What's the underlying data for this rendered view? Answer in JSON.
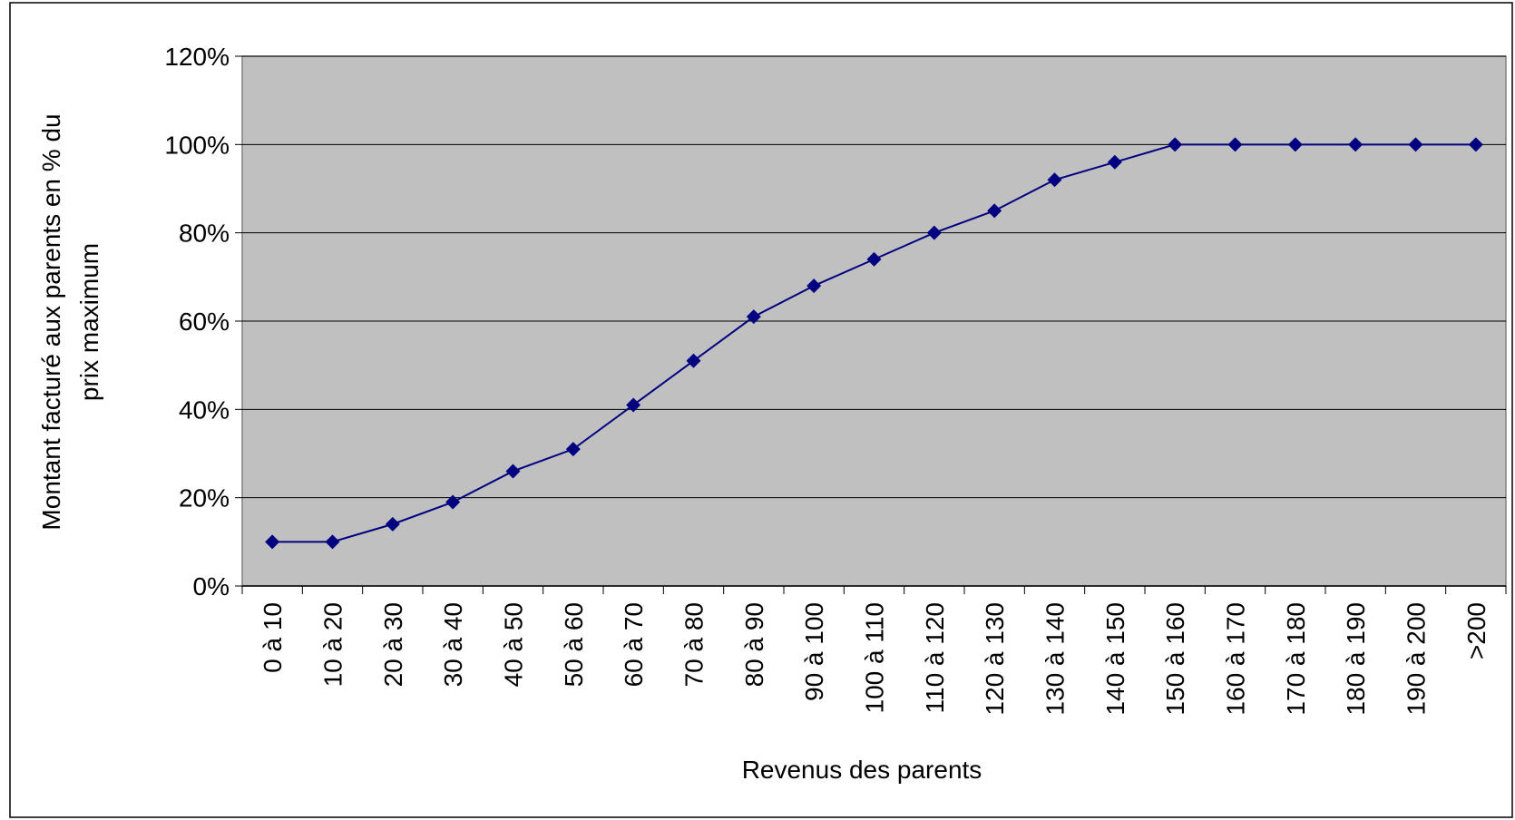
{
  "chart_data": {
    "type": "line",
    "xlabel": "Revenus des parents",
    "ylabel": "Montant facturé aux parents en % du prix maximum",
    "categories": [
      "0 à 10",
      "10 à 20",
      "20 à 30",
      "30 à 40",
      "40 à 50",
      "50 à 60",
      "60 à 70",
      "70 à 80",
      "80 à 90",
      "90 à 100",
      "100 à 110",
      "110 à 120",
      "120 à 130",
      "130 à 140",
      "140 à 150",
      "150 à 160",
      "160 à 170",
      "170 à 180",
      "180 à 190",
      "190 à 200",
      ">200"
    ],
    "series": [
      {
        "color": "#000080",
        "values": [
          10,
          10,
          14,
          19,
          26,
          31,
          41,
          51,
          61,
          68,
          74,
          80,
          85,
          92,
          96,
          100,
          100,
          100,
          100,
          100,
          100
        ]
      }
    ],
    "ylim": [
      0,
      120
    ],
    "yticks": [
      {
        "value": 0,
        "label": "0%"
      },
      {
        "value": 20,
        "label": "20%"
      },
      {
        "value": 40,
        "label": "40%"
      },
      {
        "value": 60,
        "label": "60%"
      },
      {
        "value": 80,
        "label": "80%"
      },
      {
        "value": 100,
        "label": "100%"
      },
      {
        "value": 120,
        "label": "120%"
      }
    ],
    "grid": true,
    "plot_background": "#c0c0c0"
  }
}
